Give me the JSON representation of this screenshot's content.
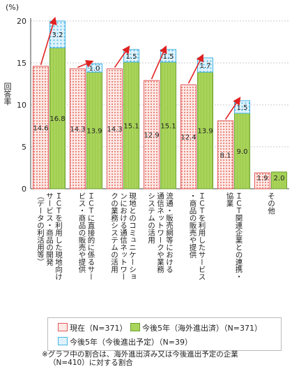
{
  "chart_data": {
    "type": "bar",
    "unit": "(%)",
    "ylabel": "回答率",
    "ylim": [
      0,
      20
    ],
    "yticks": [
      0,
      5,
      10,
      15,
      20
    ],
    "categories": [
      "ＩＣＴを利用した現地向け\nサービス・商品の開発\n（データの利活用等）",
      "ＩＣＴに直接的に係るサー\nビス・商品の販売や提供",
      "現地とのコミュニケーショ\nンにおける通信ネットワー\nクの業務システムの活用",
      "流通・販売網等における\n通信ネットワークや業務\nシステムの活用",
      "ＩＣＴを利用したサービス\n・商品の販売や提供",
      "ＩＣＴ関連企業との連携・\n協業",
      "その他"
    ],
    "series": [
      {
        "name": "現在（N=371）",
        "values": [
          14.6,
          14.3,
          14.3,
          12.9,
          12.4,
          8.1,
          1.9
        ]
      },
      {
        "name": "今後5年（海外進出済）（N=371）",
        "values": [
          16.8,
          13.9,
          15.1,
          15.1,
          13.9,
          9.0,
          2.0
        ]
      },
      {
        "name": "今後5年（今後進出予定）（N=39）",
        "values": [
          3.2,
          1.0,
          1.5,
          1.5,
          1.7,
          1.5,
          null
        ]
      }
    ],
    "colors": {
      "current": "#e05a5a",
      "future_existing": "#8bc34a",
      "future_planned": "#4fb6e2",
      "arrow": "#e02020"
    }
  },
  "legend": {
    "current": "現在（N=371）",
    "existing": "今後5年（海外進出済）（N=371）",
    "planned": "今後5年（今後進出予定）（N=39）"
  },
  "footnote": {
    "line1": "※グラフ中の割合は、海外進出済み又は今後進出予定の企業",
    "line2": "（N=410）に対する割合"
  }
}
